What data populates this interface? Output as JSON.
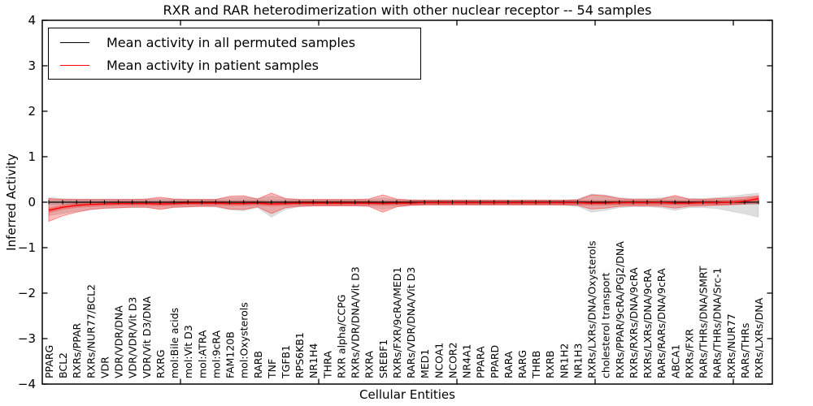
{
  "figure": {
    "title": "RXR and RAR heterodimerization with other nuclear receptor -- 54 samples",
    "xlabel": "Cellular Entities",
    "ylabel": "Inferred Activity"
  },
  "legend": {
    "entries": [
      {
        "label": "Mean activity in all permuted samples",
        "color": "#000000"
      },
      {
        "label": "Mean activity in patient samples",
        "color": "#ff0000"
      }
    ]
  },
  "chart_data": {
    "type": "line",
    "title": "RXR and RAR heterodimerization with other nuclear receptor -- 54 samples",
    "xlabel": "Cellular Entities",
    "ylabel": "Inferred Activity",
    "ylim": [
      -4,
      4
    ],
    "yticks": [
      -4,
      -3,
      -2,
      -1,
      0,
      1,
      2,
      3,
      4
    ],
    "grid": false,
    "legend_position": "upper left",
    "categories": [
      "PPARG",
      "BCL2",
      "RXRs/PPAR",
      "RXRs/NUR77/BCL2",
      "VDR",
      "VDR/VDR/DNA",
      "VDR/VDR/Vit D3",
      "VDR/Vit D3/DNA",
      "RXRG",
      "mol:Bile acids",
      "mol:Vit D3",
      "mol:ATRA",
      "mol:9cRA",
      "FAM120B",
      "mol:Oxysterols",
      "RARB",
      "TNF",
      "TGFB1",
      "RPS6KB1",
      "NR1H4",
      "THRA",
      "RXR alpha/CCPG",
      "RXRs/VDR/DNA/Vit D3",
      "RXRA",
      "SREBF1",
      "RXRs/FXR/9cRA/MED1",
      "RARs/VDR/DNA/Vit D3",
      "MED1",
      "NCOA1",
      "NCOR2",
      "NR4A1",
      "PPARA",
      "PPARD",
      "RARA",
      "RARG",
      "THRB",
      "RXRB",
      "NR1H2",
      "NR1H3",
      "RXRs/LXRs/DNA/Oxysterols",
      "cholesterol transport",
      "RXRs/PPAR/9cRA/PGJ2/DNA",
      "RXRs/RXRs/DNA/9cRA",
      "RXRs/LXRs/DNA/9cRA",
      "RARs/RARs/DNA/9cRA",
      "ABCA1",
      "RXRs/FXR",
      "RARs/THRs/DNA/SMRT",
      "RARs/THRs/DNA/Src-1",
      "RXRs/NUR77",
      "RARs/THRs",
      "RXRs/LXRs/DNA"
    ],
    "series": [
      {
        "name": "Mean activity in all permuted samples",
        "color": "#000000",
        "band_fill": "rgba(0,0,0,0.13)",
        "band_edge": "rgba(0,0,0,0.08)",
        "glow": "rgba(0,0,0,0.10)",
        "values": [
          0,
          0,
          0,
          0,
          0,
          0,
          0,
          0,
          0,
          0,
          0,
          0,
          0,
          0,
          0,
          0,
          0,
          0,
          0,
          0,
          0,
          0,
          0,
          0,
          0,
          0,
          0,
          0,
          0,
          0,
          0,
          0,
          0,
          0,
          0,
          0,
          0,
          0,
          0,
          0,
          0,
          0,
          0,
          0,
          0,
          0,
          0,
          0,
          0,
          0,
          0,
          0
        ],
        "band_upper": [
          0.1,
          0.08,
          0.07,
          0.07,
          0.07,
          0.07,
          0.07,
          0.07,
          0.08,
          0.07,
          0.07,
          0.07,
          0.07,
          0.1,
          0.11,
          0.08,
          0.14,
          0.08,
          0.06,
          0.06,
          0.06,
          0.06,
          0.06,
          0.06,
          0.1,
          0.06,
          0.05,
          0.05,
          0.05,
          0.05,
          0.05,
          0.05,
          0.05,
          0.05,
          0.05,
          0.05,
          0.05,
          0.05,
          0.07,
          0.18,
          0.16,
          0.1,
          0.08,
          0.08,
          0.1,
          0.12,
          0.08,
          0.08,
          0.1,
          0.13,
          0.17,
          0.2
        ],
        "band_lower": [
          -0.3,
          -0.25,
          -0.2,
          -0.16,
          -0.14,
          -0.13,
          -0.12,
          -0.12,
          -0.14,
          -0.12,
          -0.11,
          -0.1,
          -0.11,
          -0.17,
          -0.19,
          -0.12,
          -0.33,
          -0.16,
          -0.1,
          -0.09,
          -0.08,
          -0.08,
          -0.08,
          -0.09,
          -0.16,
          -0.1,
          -0.07,
          -0.06,
          -0.06,
          -0.06,
          -0.06,
          -0.06,
          -0.06,
          -0.06,
          -0.06,
          -0.06,
          -0.06,
          -0.07,
          -0.09,
          -0.22,
          -0.18,
          -0.12,
          -0.1,
          -0.1,
          -0.12,
          -0.18,
          -0.12,
          -0.12,
          -0.14,
          -0.2,
          -0.26,
          -0.33
        ]
      },
      {
        "name": "Mean activity in patient samples",
        "color": "#ff0000",
        "band_fill": "rgba(255,0,0,0.25)",
        "band_edge": "rgba(255,0,0,0.40)",
        "glow": "rgba(255,0,0,0.28)",
        "values": [
          -0.18,
          -0.11,
          -0.07,
          -0.05,
          -0.04,
          -0.03,
          -0.03,
          -0.03,
          -0.04,
          -0.03,
          -0.02,
          -0.02,
          -0.02,
          -0.03,
          -0.03,
          -0.02,
          -0.04,
          -0.03,
          -0.02,
          -0.02,
          -0.02,
          -0.02,
          -0.02,
          -0.02,
          -0.03,
          -0.02,
          -0.02,
          -0.01,
          -0.01,
          -0.01,
          -0.01,
          -0.01,
          -0.01,
          -0.01,
          -0.01,
          -0.01,
          -0.01,
          -0.01,
          -0.01,
          -0.02,
          -0.02,
          -0.01,
          -0.01,
          -0.01,
          -0.01,
          -0.02,
          -0.02,
          -0.01,
          -0.01,
          0.0,
          0.02,
          0.08
        ],
        "band_upper": [
          0.08,
          0.06,
          0.06,
          0.06,
          0.06,
          0.06,
          0.06,
          0.07,
          0.11,
          0.07,
          0.06,
          0.06,
          0.06,
          0.13,
          0.14,
          0.07,
          0.2,
          0.08,
          0.06,
          0.06,
          0.06,
          0.06,
          0.06,
          0.07,
          0.16,
          0.07,
          0.05,
          0.04,
          0.04,
          0.04,
          0.04,
          0.04,
          0.04,
          0.04,
          0.04,
          0.04,
          0.04,
          0.04,
          0.05,
          0.16,
          0.14,
          0.08,
          0.06,
          0.06,
          0.07,
          0.15,
          0.07,
          0.06,
          0.08,
          0.09,
          0.11,
          0.14
        ],
        "band_lower": [
          -0.42,
          -0.3,
          -0.22,
          -0.16,
          -0.13,
          -0.12,
          -0.11,
          -0.11,
          -0.16,
          -0.11,
          -0.1,
          -0.09,
          -0.09,
          -0.15,
          -0.16,
          -0.1,
          -0.25,
          -0.12,
          -0.09,
          -0.08,
          -0.08,
          -0.08,
          -0.08,
          -0.09,
          -0.22,
          -0.1,
          -0.07,
          -0.06,
          -0.06,
          -0.06,
          -0.06,
          -0.06,
          -0.06,
          -0.06,
          -0.06,
          -0.06,
          -0.06,
          -0.06,
          -0.07,
          -0.15,
          -0.13,
          -0.09,
          -0.08,
          -0.08,
          -0.09,
          -0.13,
          -0.09,
          -0.08,
          -0.07,
          -0.06,
          -0.04,
          -0.03
        ]
      }
    ]
  }
}
